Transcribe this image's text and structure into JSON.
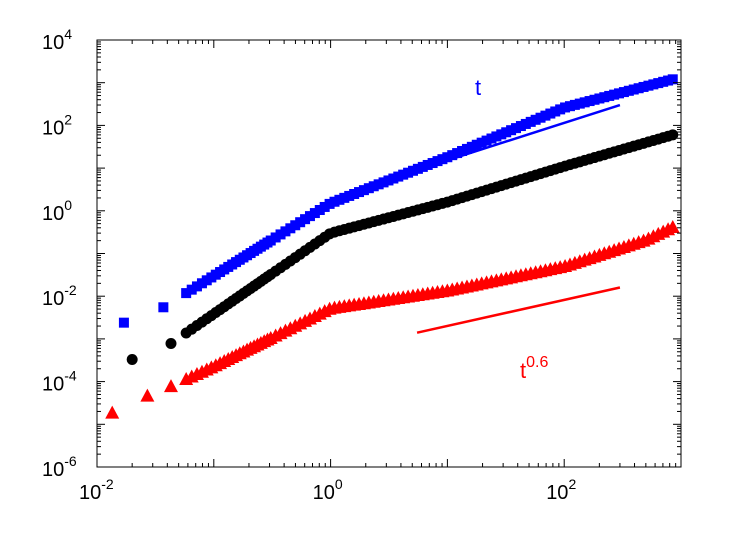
{
  "chart_data": {
    "type": "scatter",
    "title": "",
    "xlabel": "",
    "ylabel": "",
    "xscale": "log",
    "yscale": "log",
    "xlim": [
      0.01,
      1000
    ],
    "ylim": [
      1e-06,
      10000
    ],
    "grid": false,
    "x_ticks": [
      {
        "base": "10",
        "exp": "-2"
      },
      {
        "base": "10",
        "exp": "0"
      },
      {
        "base": "10",
        "exp": "2"
      }
    ],
    "y_ticks": [
      {
        "base": "10",
        "exp": "4"
      },
      {
        "base": "10",
        "exp": "2"
      },
      {
        "base": "10",
        "exp": "0"
      },
      {
        "base": "10",
        "exp": "-2"
      },
      {
        "base": "10",
        "exp": "-4"
      },
      {
        "base": "10",
        "exp": "-6"
      }
    ],
    "series": [
      {
        "marker": "square",
        "color": "#0000ff",
        "points": [
          [
            0.017,
            0.0024
          ],
          [
            0.037,
            0.0055
          ],
          [
            1.0,
            1.5
          ],
          [
            10,
            18
          ],
          [
            100,
            260
          ],
          [
            850,
            1200
          ]
        ]
      },
      {
        "marker": "circle",
        "color": "#000000",
        "points": [
          [
            0.02,
            0.00033
          ],
          [
            0.043,
            0.00078
          ],
          [
            1.0,
            0.3
          ],
          [
            10,
            1.6
          ],
          [
            100,
            11
          ],
          [
            850,
            60
          ]
        ]
      },
      {
        "marker": "triangle",
        "color": "#ff0000",
        "points": [
          [
            0.0135,
            1.8e-05
          ],
          [
            0.027,
            4.5e-05
          ],
          [
            0.043,
            7.5e-05
          ],
          [
            0.1,
            0.00022
          ],
          [
            1.0,
            0.005
          ],
          [
            10,
            0.013
          ],
          [
            100,
            0.048
          ],
          [
            500,
            0.2
          ],
          [
            850,
            0.4
          ]
        ]
      }
    ],
    "reference_lines": [
      {
        "color": "#0000ff",
        "label_base": "t",
        "label_exp": "",
        "x": [
          5.5,
          300
        ],
        "y": [
          9,
          300
        ]
      },
      {
        "color": "#ff0000",
        "label_base": "t",
        "label_exp": "0.6",
        "x": [
          5.5,
          300
        ],
        "y": [
          0.0014,
          0.016
        ]
      }
    ]
  }
}
